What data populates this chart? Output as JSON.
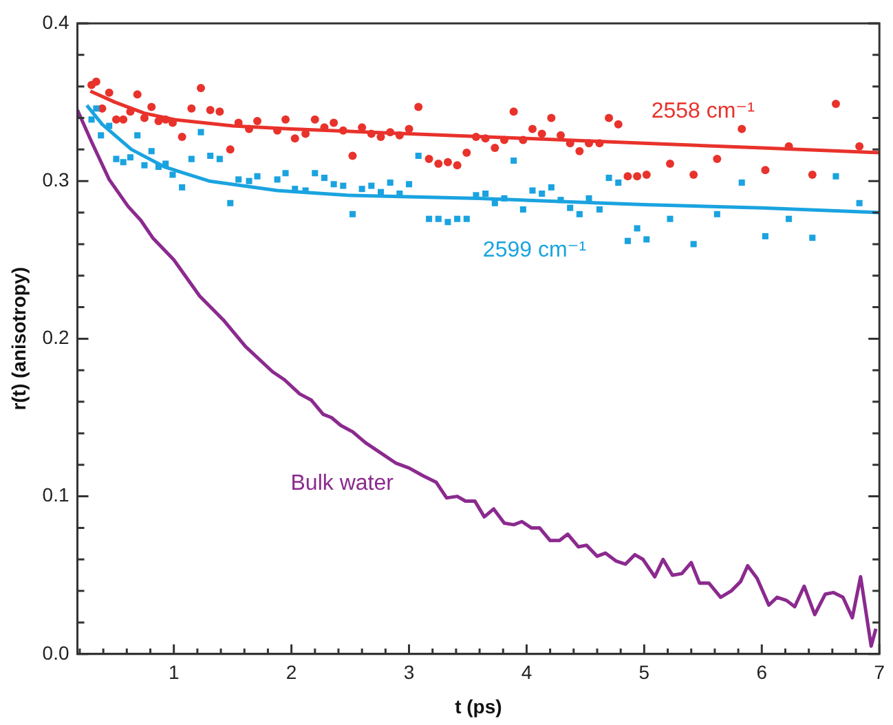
{
  "chart_data": {
    "type": "scatter",
    "xlabel": "t (ps)",
    "ylabel": "r(t) (anisotropy)",
    "xlim": [
      0.18,
      7.0
    ],
    "ylim": [
      0,
      0.4
    ],
    "xticks": [
      {
        "value": 0.2,
        "label": null
      },
      {
        "value": 0.4,
        "label": null
      },
      {
        "value": 0.6,
        "label": null
      },
      {
        "value": 0.8,
        "label": null
      },
      1,
      {
        "value": 1.2,
        "label": null
      },
      {
        "value": 1.4,
        "label": null
      },
      {
        "value": 1.6,
        "label": null
      },
      {
        "value": 1.8,
        "label": null
      },
      2,
      {
        "value": 2.2,
        "label": null
      },
      {
        "value": 2.4,
        "label": null
      },
      {
        "value": 2.6,
        "label": null
      },
      {
        "value": 2.8,
        "label": null
      },
      3,
      {
        "value": 3.2,
        "label": null
      },
      {
        "value": 3.4,
        "label": null
      },
      {
        "value": 3.6,
        "label": null
      },
      {
        "value": 3.8,
        "label": null
      },
      4,
      {
        "value": 4.2,
        "label": null
      },
      {
        "value": 4.4,
        "label": null
      },
      {
        "value": 4.6,
        "label": null
      },
      {
        "value": 4.8,
        "label": null
      },
      5,
      {
        "value": 5.2,
        "label": null
      },
      {
        "value": 5.4,
        "label": null
      },
      {
        "value": 5.6,
        "label": null
      },
      {
        "value": 5.8,
        "label": null
      },
      6,
      {
        "value": 6.2,
        "label": null
      },
      {
        "value": 6.4,
        "label": null
      },
      {
        "value": 6.6,
        "label": null
      },
      {
        "value": 6.8,
        "label": null
      },
      7
    ],
    "yticks": [
      {
        "value": 0,
        "label": "0.0"
      },
      {
        "value": 0.02,
        "label": null
      },
      {
        "value": 0.04,
        "label": null
      },
      {
        "value": 0.06,
        "label": null
      },
      {
        "value": 0.08,
        "label": null
      },
      {
        "value": 0.1,
        "label": "0.1"
      },
      {
        "value": 0.12,
        "label": null
      },
      {
        "value": 0.14,
        "label": null
      },
      {
        "value": 0.16,
        "label": null
      },
      {
        "value": 0.18,
        "label": null
      },
      {
        "value": 0.2,
        "label": "0.2"
      },
      {
        "value": 0.22,
        "label": null
      },
      {
        "value": 0.24,
        "label": null
      },
      {
        "value": 0.26,
        "label": null
      },
      {
        "value": 0.28,
        "label": null
      },
      {
        "value": 0.3,
        "label": "0.3"
      },
      {
        "value": 0.32,
        "label": null
      },
      {
        "value": 0.34,
        "label": null
      },
      {
        "value": 0.36,
        "label": null
      },
      {
        "value": 0.38,
        "label": null
      },
      {
        "value": 0.4,
        "label": "0.4"
      }
    ],
    "series": [
      {
        "name": "2558 cm⁻¹",
        "type": "scatter",
        "marker": "circle",
        "color": "#e8322b",
        "x": [
          0.3,
          0.34,
          0.39,
          0.45,
          0.51,
          0.57,
          0.63,
          0.69,
          0.75,
          0.81,
          0.87,
          0.93,
          0.99,
          1.07,
          1.15,
          1.23,
          1.31,
          1.39,
          1.48,
          1.55,
          1.64,
          1.71,
          1.88,
          1.95,
          2.03,
          2.12,
          2.2,
          2.28,
          2.36,
          2.44,
          2.52,
          2.6,
          2.68,
          2.76,
          2.84,
          2.92,
          3.0,
          3.08,
          3.17,
          3.25,
          3.33,
          3.41,
          3.49,
          3.57,
          3.65,
          3.73,
          3.81,
          3.89,
          3.97,
          4.05,
          4.13,
          4.21,
          4.29,
          4.37,
          4.45,
          4.53,
          4.62,
          4.7,
          4.78,
          4.86,
          4.94,
          5.02,
          5.22,
          5.42,
          5.62,
          5.83,
          6.03,
          6.23,
          6.43,
          6.63,
          6.83
        ],
        "values": [
          0.361,
          0.363,
          0.346,
          0.356,
          0.339,
          0.339,
          0.344,
          0.355,
          0.34,
          0.347,
          0.338,
          0.339,
          0.337,
          0.328,
          0.346,
          0.359,
          0.345,
          0.344,
          0.32,
          0.337,
          0.333,
          0.338,
          0.332,
          0.339,
          0.327,
          0.33,
          0.339,
          0.334,
          0.337,
          0.332,
          0.316,
          0.334,
          0.33,
          0.328,
          0.331,
          0.329,
          0.333,
          0.347,
          0.314,
          0.311,
          0.312,
          0.31,
          0.318,
          0.328,
          0.327,
          0.321,
          0.326,
          0.344,
          0.326,
          0.333,
          0.33,
          0.34,
          0.329,
          0.324,
          0.319,
          0.324,
          0.324,
          0.34,
          0.336,
          0.303,
          0.303,
          0.304,
          0.311,
          0.304,
          0.314,
          0.333,
          0.307,
          0.322,
          0.304,
          0.349,
          0.322
        ]
      },
      {
        "type": "line",
        "color": "#e8322b",
        "x": [
          0.29,
          0.5,
          0.75,
          1,
          1.5,
          2,
          3,
          4,
          5,
          6,
          7
        ],
        "values": [
          0.357,
          0.35,
          0.343,
          0.339,
          0.335,
          0.333,
          0.33,
          0.327,
          0.324,
          0.321,
          0.318
        ]
      },
      {
        "name": "2599 cm⁻¹",
        "type": "scatter",
        "marker": "square",
        "color": "#1aa3e0",
        "x": [
          0.3,
          0.34,
          0.38,
          0.45,
          0.51,
          0.57,
          0.63,
          0.69,
          0.75,
          0.81,
          0.87,
          0.93,
          0.99,
          1.07,
          1.15,
          1.23,
          1.31,
          1.39,
          1.48,
          1.55,
          1.64,
          1.71,
          1.88,
          1.95,
          2.03,
          2.12,
          2.2,
          2.28,
          2.36,
          2.44,
          2.52,
          2.6,
          2.68,
          2.76,
          2.84,
          2.92,
          3.0,
          3.08,
          3.17,
          3.25,
          3.33,
          3.41,
          3.49,
          3.57,
          3.65,
          3.73,
          3.81,
          3.89,
          3.97,
          4.05,
          4.13,
          4.21,
          4.29,
          4.37,
          4.45,
          4.53,
          4.62,
          4.7,
          4.78,
          4.86,
          4.94,
          5.02,
          5.22,
          5.42,
          5.62,
          5.83,
          6.03,
          6.23,
          6.43,
          6.63,
          6.83
        ],
        "values": [
          0.339,
          0.346,
          0.329,
          0.335,
          0.314,
          0.312,
          0.315,
          0.329,
          0.31,
          0.319,
          0.309,
          0.311,
          0.304,
          0.296,
          0.314,
          0.331,
          0.316,
          0.314,
          0.286,
          0.301,
          0.3,
          0.303,
          0.301,
          0.305,
          0.295,
          0.294,
          0.305,
          0.302,
          0.298,
          0.297,
          0.279,
          0.295,
          0.297,
          0.293,
          0.299,
          0.292,
          0.298,
          0.316,
          0.276,
          0.276,
          0.274,
          0.276,
          0.276,
          0.291,
          0.292,
          0.286,
          0.289,
          0.313,
          0.282,
          0.294,
          0.292,
          0.296,
          0.288,
          0.283,
          0.279,
          0.289,
          0.282,
          0.302,
          0.299,
          0.262,
          0.27,
          0.263,
          0.276,
          0.26,
          0.279,
          0.299,
          0.265,
          0.276,
          0.264,
          0.303,
          0.286
        ]
      },
      {
        "type": "line",
        "color": "#1aa3e0",
        "x": [
          0.26,
          0.39,
          0.64,
          0.92,
          1.3,
          1.88,
          2.47,
          3.6,
          5,
          6,
          7
        ],
        "values": [
          0.348,
          0.336,
          0.32,
          0.309,
          0.3,
          0.294,
          0.291,
          0.289,
          0.285,
          0.283,
          0.28
        ]
      },
      {
        "name": "Bulk water",
        "type": "line",
        "color": "#8b2a8f",
        "x": [
          0.18,
          0.3,
          0.45,
          0.61,
          0.72,
          0.82,
          1.0,
          1.22,
          1.42,
          1.61,
          1.84,
          1.94,
          2.07,
          2.17,
          2.27,
          2.34,
          2.42,
          2.52,
          2.63,
          2.75,
          2.89,
          3.0,
          3.12,
          3.23,
          3.32,
          3.41,
          3.48,
          3.56,
          3.64,
          3.72,
          3.81,
          3.89,
          3.96,
          4.04,
          4.11,
          4.2,
          4.28,
          4.35,
          4.44,
          4.51,
          4.6,
          4.67,
          4.76,
          4.84,
          4.92,
          4.99,
          5.09,
          5.16,
          5.24,
          5.32,
          5.4,
          5.47,
          5.55,
          5.65,
          5.74,
          5.82,
          5.88,
          5.96,
          6.06,
          6.13,
          6.21,
          6.28,
          6.36,
          6.45,
          6.54,
          6.61,
          6.69,
          6.77,
          6.84,
          6.93,
          6.97
        ],
        "values": [
          0.345,
          0.325,
          0.301,
          0.284,
          0.275,
          0.264,
          0.25,
          0.227,
          0.212,
          0.195,
          0.179,
          0.174,
          0.165,
          0.161,
          0.152,
          0.15,
          0.145,
          0.141,
          0.134,
          0.128,
          0.121,
          0.118,
          0.113,
          0.109,
          0.099,
          0.1,
          0.097,
          0.097,
          0.087,
          0.092,
          0.083,
          0.082,
          0.084,
          0.08,
          0.08,
          0.072,
          0.072,
          0.076,
          0.068,
          0.069,
          0.062,
          0.064,
          0.059,
          0.057,
          0.063,
          0.06,
          0.049,
          0.06,
          0.05,
          0.051,
          0.058,
          0.045,
          0.045,
          0.036,
          0.04,
          0.046,
          0.056,
          0.048,
          0.031,
          0.036,
          0.034,
          0.03,
          0.043,
          0.025,
          0.038,
          0.039,
          0.036,
          0.023,
          0.049,
          0.005,
          0.016
        ]
      }
    ]
  }
}
